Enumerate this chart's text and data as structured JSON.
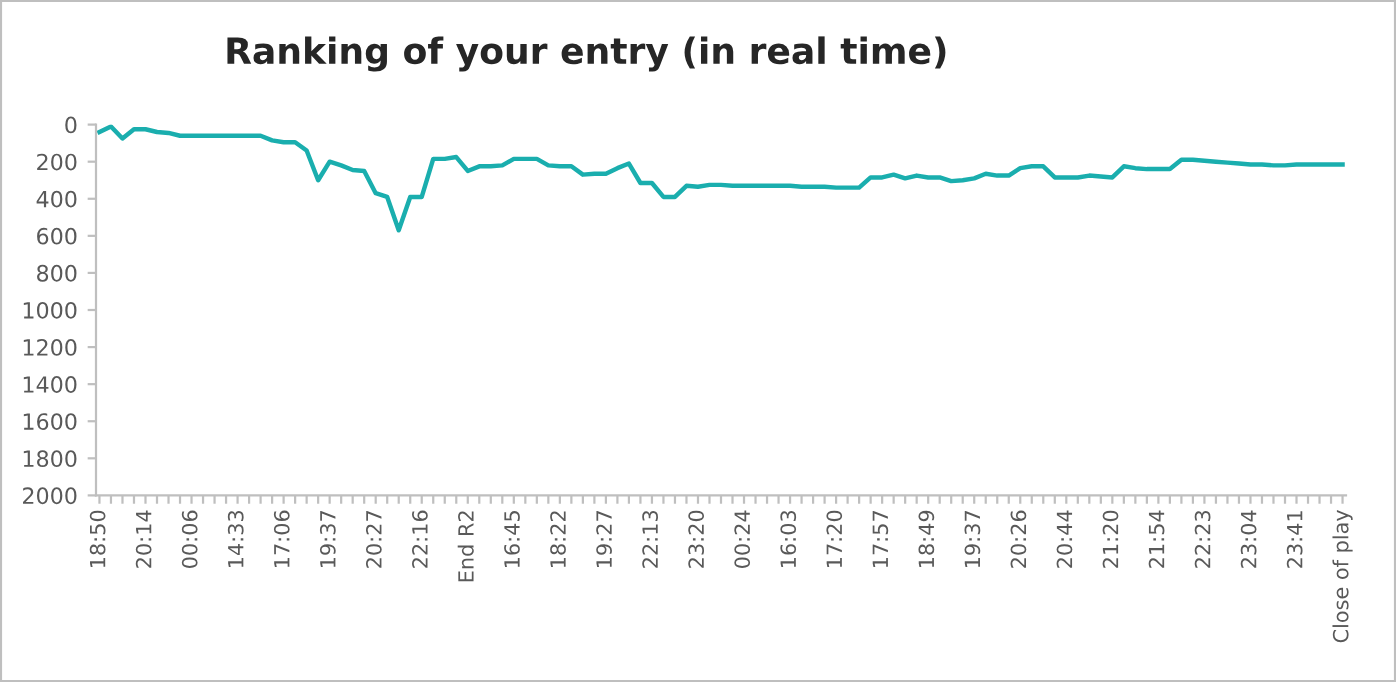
{
  "chart_data": {
    "type": "line",
    "title": "Ranking of your entry (in real time)",
    "categories": [
      "18:50",
      null,
      null,
      null,
      "20:14",
      null,
      null,
      null,
      "00:06",
      null,
      null,
      null,
      "14:33",
      null,
      null,
      null,
      "17:06",
      null,
      null,
      null,
      "19:37",
      null,
      null,
      null,
      "20:27",
      null,
      null,
      null,
      "22:16",
      null,
      null,
      null,
      "End R2",
      null,
      null,
      null,
      "16:45",
      null,
      null,
      null,
      "18:22",
      null,
      null,
      null,
      "19:27",
      null,
      null,
      null,
      "22:13",
      null,
      null,
      null,
      "23:20",
      null,
      null,
      null,
      "00:24",
      null,
      null,
      null,
      "16:03",
      null,
      null,
      null,
      "17:20",
      null,
      null,
      null,
      "17:57",
      null,
      null,
      null,
      "18:49",
      null,
      null,
      null,
      "19:37",
      null,
      null,
      null,
      "20:26",
      null,
      null,
      null,
      "20:44",
      null,
      null,
      null,
      "21:20",
      null,
      null,
      null,
      "21:54",
      null,
      null,
      null,
      "22:23",
      null,
      null,
      null,
      "23:04",
      null,
      null,
      null,
      "23:41",
      null,
      null,
      null,
      "Close of play"
    ],
    "series": [
      {
        "color": "#1aaeae",
        "values": [
          40,
          10,
          75,
          25,
          25,
          40,
          45,
          60,
          60,
          60,
          60,
          60,
          60,
          60,
          60,
          85,
          95,
          95,
          140,
          300,
          200,
          220,
          245,
          250,
          370,
          390,
          570,
          390,
          390,
          185,
          185,
          175,
          250,
          225,
          225,
          220,
          185,
          185,
          185,
          220,
          225,
          225,
          270,
          265,
          265,
          235,
          210,
          315,
          315,
          390,
          390,
          330,
          335,
          325,
          325,
          330,
          330,
          330,
          330,
          330,
          330,
          335,
          335,
          335,
          340,
          340,
          340,
          285,
          285,
          270,
          290,
          275,
          285,
          285,
          305,
          300,
          290,
          265,
          275,
          275,
          235,
          225,
          225,
          285,
          285,
          285,
          275,
          280,
          285,
          225,
          235,
          240,
          240,
          240,
          190,
          190,
          195,
          200,
          205,
          210,
          215,
          215,
          220,
          220,
          215,
          215,
          215,
          215,
          215
        ]
      }
    ],
    "ylim": [
      2000,
      0
    ],
    "yticks": [
      0,
      200,
      400,
      600,
      800,
      1000,
      1200,
      1400,
      1600,
      1800,
      2000
    ],
    "grid": false,
    "legend": false,
    "marker": "none",
    "line_style": "solid"
  }
}
